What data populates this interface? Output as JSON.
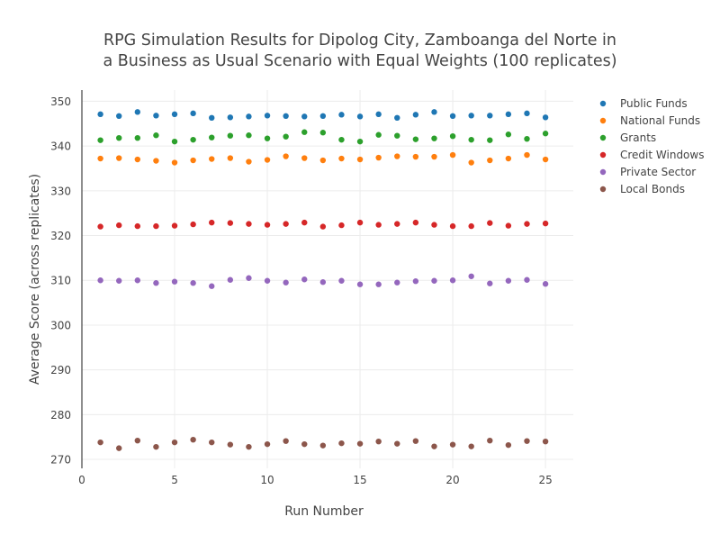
{
  "chart_data": {
    "type": "scatter",
    "title_line1": "RPG Simulation Results for Dipolog City, Zamboanga del Norte in",
    "title_line2": "a Business as Usual Scenario with Equal Weights (100 replicates)",
    "xlabel": "Run Number",
    "ylabel": "Average Score (across replicates)",
    "xlim": [
      0,
      26.5
    ],
    "ylim": [
      268,
      352.5
    ],
    "xticks": [
      0,
      5,
      10,
      15,
      20,
      25
    ],
    "yticks": [
      270,
      280,
      290,
      300,
      310,
      320,
      330,
      340,
      350
    ],
    "grid": true,
    "legend_position": "top-right",
    "x": [
      1,
      2,
      3,
      4,
      5,
      6,
      7,
      8,
      9,
      10,
      11,
      12,
      13,
      14,
      15,
      16,
      17,
      18,
      19,
      20,
      21,
      22,
      23,
      24,
      25
    ],
    "series": [
      {
        "name": "Public Funds",
        "color": "#1f77b4",
        "values": [
          347.1,
          346.7,
          347.6,
          346.8,
          347.1,
          347.3,
          346.3,
          346.4,
          346.6,
          346.8,
          346.7,
          346.6,
          346.7,
          347.0,
          346.6,
          347.1,
          346.3,
          347.0,
          347.6,
          346.7,
          346.8,
          346.8,
          347.1,
          347.3,
          346.4
        ]
      },
      {
        "name": "National Funds",
        "color": "#ff7f0e",
        "values": [
          337.2,
          337.3,
          337.0,
          336.7,
          336.3,
          336.8,
          337.1,
          337.3,
          336.5,
          336.9,
          337.7,
          337.3,
          336.8,
          337.2,
          337.0,
          337.4,
          337.7,
          337.6,
          337.6,
          338.0,
          336.3,
          336.8,
          337.2,
          338.0,
          337.0
        ]
      },
      {
        "name": "Grants",
        "color": "#2ca02c",
        "values": [
          341.3,
          341.8,
          341.8,
          342.4,
          341.0,
          341.4,
          341.9,
          342.3,
          342.4,
          341.7,
          342.1,
          343.1,
          343.0,
          341.4,
          341.0,
          342.5,
          342.3,
          341.5,
          341.7,
          342.2,
          341.4,
          341.3,
          342.6,
          341.6,
          342.8
        ]
      },
      {
        "name": "Credit Windows",
        "color": "#d62728",
        "values": [
          322.0,
          322.3,
          322.1,
          322.1,
          322.2,
          322.5,
          322.9,
          322.8,
          322.6,
          322.4,
          322.6,
          322.9,
          322.0,
          322.3,
          322.9,
          322.4,
          322.6,
          322.9,
          322.4,
          322.1,
          322.1,
          322.8,
          322.2,
          322.6,
          322.7
        ]
      },
      {
        "name": "Private Sector",
        "color": "#9467bd",
        "values": [
          310.0,
          309.9,
          310.0,
          309.4,
          309.7,
          309.4,
          308.7,
          310.1,
          310.5,
          309.9,
          309.5,
          310.2,
          309.6,
          309.9,
          309.1,
          309.1,
          309.5,
          309.8,
          309.9,
          310.0,
          310.9,
          309.3,
          309.9,
          310.1,
          309.2
        ]
      },
      {
        "name": "Local Bonds",
        "color": "#8c564b",
        "values": [
          273.8,
          272.5,
          274.2,
          272.8,
          273.8,
          274.4,
          273.8,
          273.3,
          272.8,
          273.4,
          274.1,
          273.4,
          273.1,
          273.6,
          273.5,
          274.0,
          273.5,
          274.1,
          272.9,
          273.3,
          272.9,
          274.2,
          273.2,
          274.1,
          274.0
        ]
      }
    ]
  }
}
